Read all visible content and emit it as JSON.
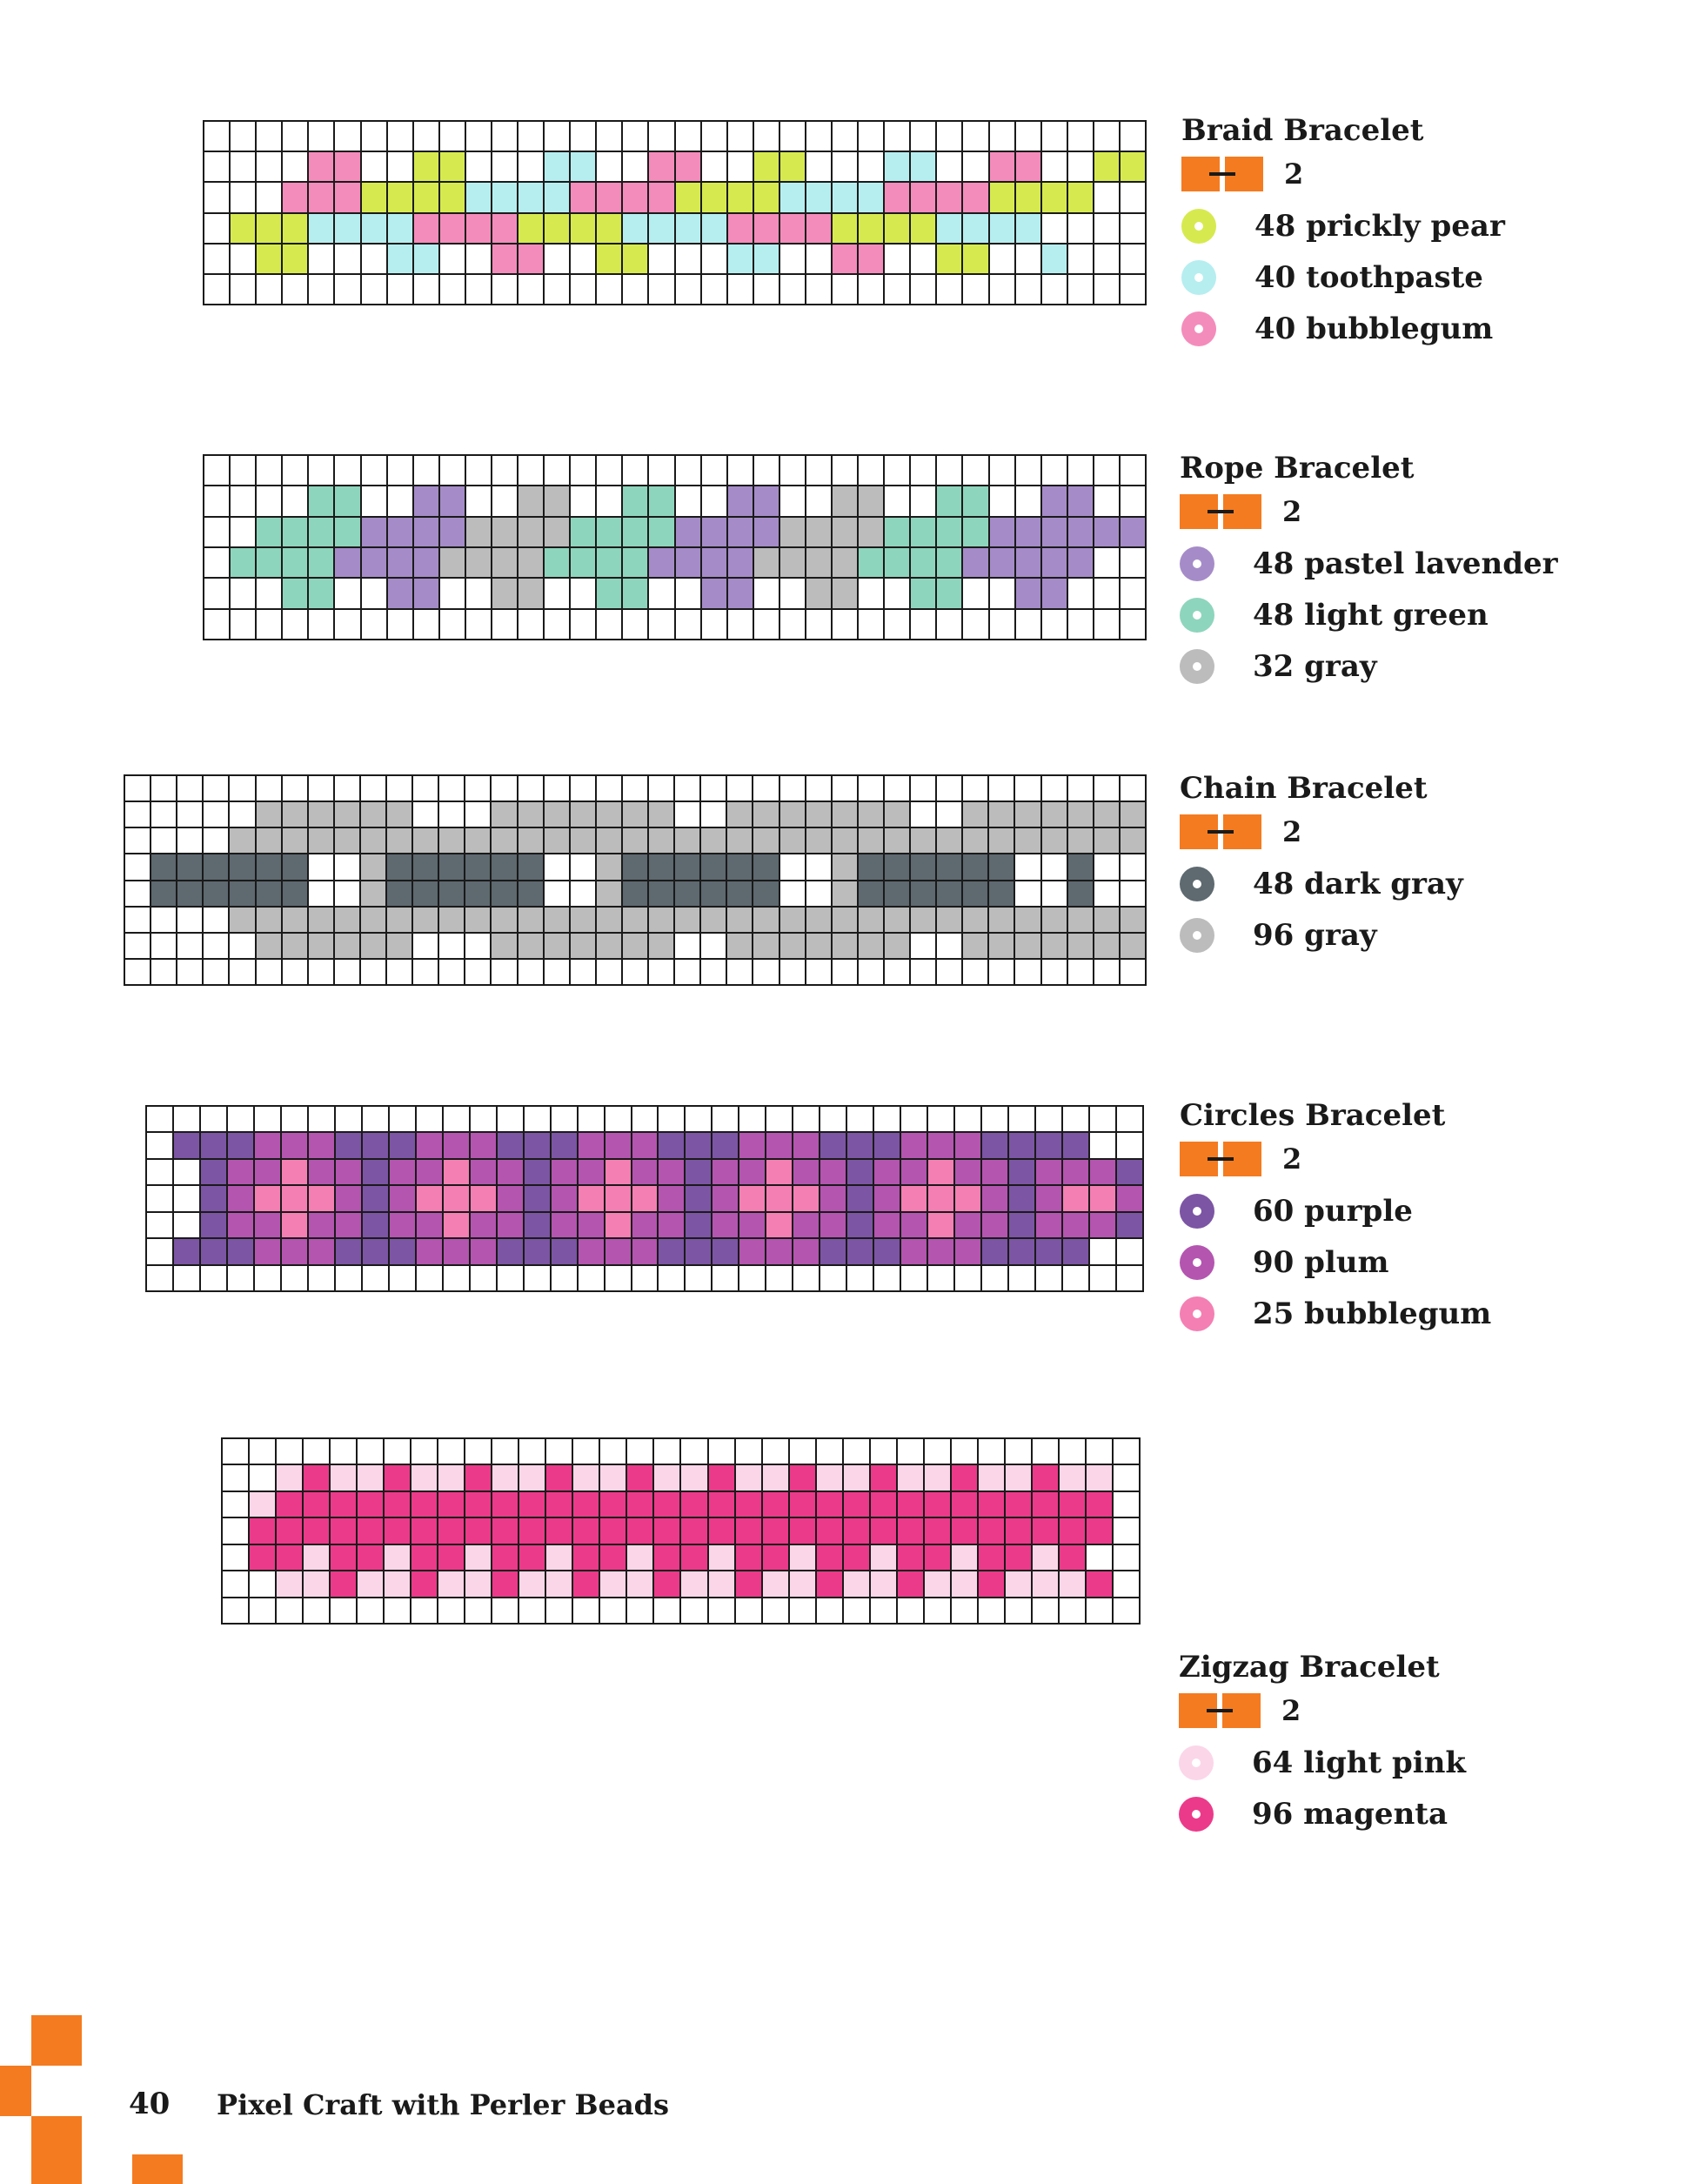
{
  "page": {
    "number": "40",
    "book_title": "Pixel Craft with Perler Beads"
  },
  "palette": {
    "G": "#d6ea4f",
    "T": "#b6eef0",
    "P": "#f48cbb",
    "L": "#a58cc8",
    "N": "#8ed5bd",
    "Y": "#bcbcbc",
    "D": "#5e6970",
    "U": "#7c55a4",
    "M": "#b455b0",
    "B": "#f47fb3",
    "K": "#fbd6e8",
    "Z": "#ec3a8a"
  },
  "clasp": {
    "color": "#f47b20",
    "icon": "clasp-icon"
  },
  "bracelets": [
    {
      "title": "Braid Bracelet",
      "clasp_count": "2",
      "items": [
        {
          "label": "48 prickly pear",
          "color": "#d6ea4f"
        },
        {
          "label": "40 toothpaste",
          "color": "#b6eef0"
        },
        {
          "label": "40 bubblegum",
          "color": "#f48cbb"
        }
      ],
      "rows": [
        "....................................",
        "....PP..GG...TT..PP..GG...TT..PP..GG",
        "...PPPGGGGTTTTPPPPGGGGTTTTPPPPGGGG..",
        ".GGGTTTTPPPPGGGGTTTTPPPPGGGGTTTT....",
        "..GG...TT..PP..GG...TT..PP..GG..T...",
        "...................................."
      ]
    },
    {
      "title": "Rope Bracelet",
      "clasp_count": "2",
      "items": [
        {
          "label": "48 pastel lavender",
          "color": "#a58cc8"
        },
        {
          "label": "48 light green",
          "color": "#8ed5bd"
        },
        {
          "label": "32 gray",
          "color": "#bcbcbc"
        }
      ],
      "rows": [
        "....................................",
        "....NN..LL..YY..NN..LL..YY..NN..LL..",
        "..NNNNLLLLYYYYNNNNLLLLYYYYNNNNLLLLLL",
        ".NNNNLLLLYYYYNNNNLLLLYYYYNNNNLLLLL..",
        "...NN..LL..YY..NN..LL..YY..NN..LL...",
        "...................................."
      ]
    },
    {
      "title": "Chain Bracelet",
      "clasp_count": "2",
      "items": [
        {
          "label": "48 dark gray",
          "color": "#5e6970"
        },
        {
          "label": "96 gray",
          "color": "#bcbcbc"
        }
      ],
      "rows": [
        "...................................",
        ".....YYYYYY...YYYYYYY..YYYYYYY..YYYYYYY",
        "....YYYYYYYYYYYYYYYYYYYYYYYYYYYYYYYYYYY",
        ".DDDDDD..YDDDDDD..YDDDDDD..YDDDDDD..D..",
        ".DDDDDD..YDDDDDD..YDDDDDD..YDDDDDD..D..",
        "....YYYYYYYYYYYYYYYYYYYYYYYYYYYYYYYYYYY",
        ".....YYYYYY...YYYYYYY..YYYYYYY..YYYYYYY",
        "......................................."
      ]
    },
    {
      "title": "Circles Bracelet",
      "clasp_count": "2",
      "items": [
        {
          "label": "60 purple",
          "color": "#7c55a4"
        },
        {
          "label": "90 plum",
          "color": "#b455b0"
        },
        {
          "label": "25 bubblegum",
          "color": "#f47fb3"
        }
      ],
      "rows": [
        ".....................................",
        ".UUUMMMUUUMMMUUUMMMUUUMMMUUUMMMUUUU..",
        "..UMMBMMUMMBMMUMMBMMUMMBMMUMMBMMUMMMU",
        "..UMBBBMUMBBBMUMBBBMUMBBBMUMBBBMUMBBM",
        "..UMMBMMUMMBMMUMMBMMUMMBMMUMMBMMUMMMU",
        ".UUUMMMUUUMMMUUUMMMUUUMMMUUUMMMUUUU..",
        "....................................."
      ]
    },
    {
      "title": "Zigzag Bracelet",
      "clasp_count": "2",
      "items": [
        {
          "label": "64 light pink",
          "color": "#fbd6e8"
        },
        {
          "label": "96 magenta",
          "color": "#ec3a8a"
        }
      ],
      "rows": [
        "..................................",
        "..KZKKZKKZKKZKKZKKZKKZKKZKKZKKZKK.",
        ".KZZZZZZZZZZZZZZZZZZZZZZZZZZZZZZZ.",
        ".ZZZZZZZZZZZZZZZZZZZZZZZZZZZZZZZZ.",
        ".ZZKZZKZZKZZKZZKZZKZZKZZKZZKZZKZ..",
        "..KKZKKZKKZKKZKKZKKZKKZKKZKKZKKKZ.",
        ".................................."
      ]
    }
  ]
}
